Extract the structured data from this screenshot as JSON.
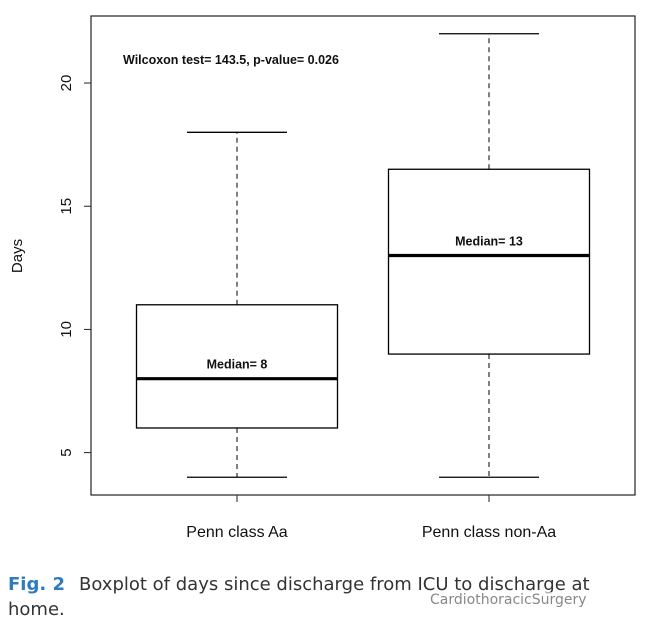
{
  "chart_data": {
    "type": "box",
    "ylabel": "Days",
    "annotation": "Wilcoxon test= 143.5, p-value= 0.026",
    "categories": [
      "Penn class Aa",
      "Penn class non-Aa"
    ],
    "boxes": [
      {
        "min": 4,
        "q1": 6,
        "median": 8,
        "q3": 11,
        "max": 18,
        "label": "Median= 8"
      },
      {
        "min": 4,
        "q1": 9,
        "median": 13,
        "q3": 16.5,
        "max": 22,
        "label": "Median= 13"
      }
    ],
    "color": "#000000",
    "ylim": [
      3.28,
      22.72
    ],
    "yticks": [
      5,
      10,
      15,
      20
    ]
  },
  "caption": {
    "label": "Fig. 2",
    "text": "Boxplot of days since discharge from ICU to discharge at home."
  },
  "watermark": "CardiothoracicSurgery"
}
